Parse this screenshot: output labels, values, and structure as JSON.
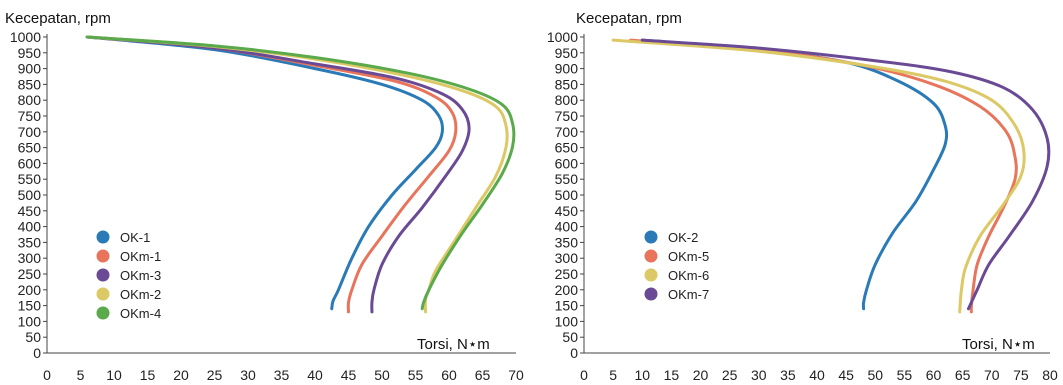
{
  "chart_data": [
    {
      "type": "line",
      "ylabel": "Kecepatan, rpm",
      "xlabel": "Torsi, N⋆m",
      "xlim": [
        0,
        70
      ],
      "ylim": [
        0,
        1000
      ],
      "xticks": [
        0,
        5,
        10,
        15,
        20,
        25,
        30,
        35,
        40,
        45,
        50,
        55,
        60,
        65,
        70
      ],
      "yticks": [
        0,
        50,
        100,
        150,
        200,
        250,
        300,
        350,
        400,
        450,
        500,
        550,
        600,
        650,
        700,
        750,
        800,
        850,
        900,
        950,
        1000
      ],
      "grid": false,
      "legend_position": "lower-left",
      "series": [
        {
          "name": "OK-1",
          "color": "#2a7ab8",
          "points": [
            [
              6,
              1000
            ],
            [
              25,
              960
            ],
            [
              40,
              900
            ],
            [
              50,
              850
            ],
            [
              56,
              800
            ],
            [
              58.5,
              750
            ],
            [
              59,
              700
            ],
            [
              58,
              650
            ],
            [
              55,
              580
            ],
            [
              51.5,
              500
            ],
            [
              48,
              400
            ],
            [
              45.5,
              300
            ],
            [
              43.5,
              200
            ],
            [
              42.7,
              165
            ],
            [
              42.5,
              140
            ]
          ]
        },
        {
          "name": "OKm-1",
          "color": "#e8745c",
          "points": [
            [
              6,
              1000
            ],
            [
              25,
              965
            ],
            [
              40,
              910
            ],
            [
              52,
              860
            ],
            [
              58,
              810
            ],
            [
              60.5,
              760
            ],
            [
              61,
              700
            ],
            [
              60,
              640
            ],
            [
              57,
              560
            ],
            [
              53.5,
              470
            ],
            [
              50,
              370
            ],
            [
              47,
              280
            ],
            [
              45.5,
              200
            ],
            [
              45,
              160
            ],
            [
              45,
              130
            ]
          ]
        },
        {
          "name": "OKm-3",
          "color": "#6a4a94",
          "points": [
            [
              6,
              1000
            ],
            [
              25,
              965
            ],
            [
              40,
              915
            ],
            [
              52,
              870
            ],
            [
              59,
              820
            ],
            [
              62,
              770
            ],
            [
              63,
              710
            ],
            [
              62,
              640
            ],
            [
              59.5,
              560
            ],
            [
              56,
              460
            ],
            [
              52.5,
              370
            ],
            [
              50,
              280
            ],
            [
              48.8,
              200
            ],
            [
              48.5,
              160
            ],
            [
              48.5,
              130
            ]
          ]
        },
        {
          "name": "OKm-2",
          "color": "#dcc864",
          "points": [
            [
              6,
              1000
            ],
            [
              25,
              970
            ],
            [
              40,
              930
            ],
            [
              53,
              880
            ],
            [
              62,
              830
            ],
            [
              67,
              780
            ],
            [
              68.5,
              720
            ],
            [
              68.5,
              650
            ],
            [
              67,
              560
            ],
            [
              64,
              460
            ],
            [
              61,
              360
            ],
            [
              58,
              260
            ],
            [
              57,
              200
            ],
            [
              56.5,
              170
            ],
            [
              56.5,
              130
            ]
          ]
        },
        {
          "name": "OKm-4",
          "color": "#5aaa4c",
          "points": [
            [
              6,
              1000
            ],
            [
              25,
              972
            ],
            [
              40,
              935
            ],
            [
              54,
              885
            ],
            [
              63,
              835
            ],
            [
              68,
              785
            ],
            [
              69.5,
              725
            ],
            [
              69.5,
              655
            ],
            [
              68,
              570
            ],
            [
              65,
              470
            ],
            [
              62,
              380
            ],
            [
              59,
              280
            ],
            [
              57,
              200
            ],
            [
              56.2,
              160
            ],
            [
              56,
              140
            ]
          ]
        }
      ]
    },
    {
      "type": "line",
      "ylabel": "Kecepatan, rpm",
      "xlabel": "Torsi, N⋆m",
      "xlim": [
        0,
        80
      ],
      "ylim": [
        0,
        1000
      ],
      "xticks": [
        0,
        5,
        10,
        15,
        20,
        25,
        30,
        35,
        40,
        45,
        50,
        55,
        60,
        65,
        70,
        75,
        80
      ],
      "yticks": [
        0,
        50,
        100,
        150,
        200,
        250,
        300,
        350,
        400,
        450,
        500,
        550,
        600,
        650,
        700,
        750,
        800,
        850,
        900,
        950,
        1000
      ],
      "grid": false,
      "legend_position": "lower-left",
      "series": [
        {
          "name": "OK-2",
          "color": "#2a7ab8",
          "points": [
            [
              10,
              990
            ],
            [
              30,
              960
            ],
            [
              45,
              920
            ],
            [
              54,
              860
            ],
            [
              60,
              790
            ],
            [
              62,
              720
            ],
            [
              62,
              660
            ],
            [
              60,
              580
            ],
            [
              57,
              480
            ],
            [
              53,
              380
            ],
            [
              50,
              280
            ],
            [
              48.5,
              200
            ],
            [
              48,
              160
            ],
            [
              48,
              140
            ]
          ]
        },
        {
          "name": "OKm-5",
          "color": "#e8745c",
          "points": [
            [
              8,
              990
            ],
            [
              30,
              960
            ],
            [
              48,
              910
            ],
            [
              60,
              850
            ],
            [
              68,
              780
            ],
            [
              72.5,
              700
            ],
            [
              74,
              620
            ],
            [
              74,
              550
            ],
            [
              72,
              460
            ],
            [
              69.5,
              370
            ],
            [
              67.5,
              280
            ],
            [
              66.8,
              200
            ],
            [
              66.5,
              150
            ],
            [
              66.5,
              130
            ]
          ]
        },
        {
          "name": "OKm-6",
          "color": "#dcc864",
          "points": [
            [
              5,
              990
            ],
            [
              30,
              955
            ],
            [
              50,
              905
            ],
            [
              62,
              860
            ],
            [
              70,
              800
            ],
            [
              74,
              720
            ],
            [
              75.5,
              640
            ],
            [
              75,
              560
            ],
            [
              72,
              470
            ],
            [
              68,
              370
            ],
            [
              65.5,
              270
            ],
            [
              64.8,
              200
            ],
            [
              64.6,
              160
            ],
            [
              64.5,
              130
            ]
          ]
        },
        {
          "name": "OKm-7",
          "color": "#6a4a94",
          "points": [
            [
              10,
              990
            ],
            [
              30,
              965
            ],
            [
              50,
              925
            ],
            [
              63,
              890
            ],
            [
              72,
              840
            ],
            [
              77,
              770
            ],
            [
              79.5,
              680
            ],
            [
              79.5,
              590
            ],
            [
              77,
              480
            ],
            [
              73,
              370
            ],
            [
              69.5,
              280
            ],
            [
              67.5,
              200
            ],
            [
              66.5,
              160
            ],
            [
              66,
              140
            ]
          ]
        }
      ]
    }
  ]
}
